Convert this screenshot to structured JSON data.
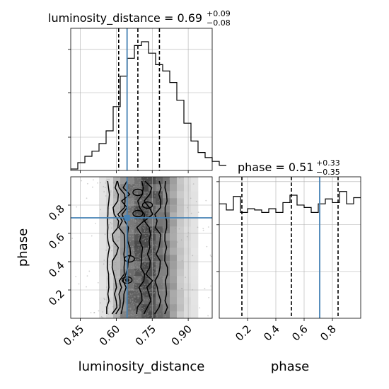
{
  "chart_data": {
    "type": "corner",
    "parameters": [
      "luminosity_distance",
      "phase"
    ],
    "truths": {
      "luminosity_distance": 0.645,
      "phase": 0.71
    },
    "titles": [
      {
        "param": "luminosity_distance",
        "prefix": "luminosity_distance = ",
        "median": "0.69",
        "plus": "+0.09",
        "minus": "−0.08"
      },
      {
        "param": "phase",
        "prefix": "phase = ",
        "median": "0.51",
        "plus": "+0.33",
        "minus": "−0.35"
      }
    ],
    "quantiles": {
      "luminosity_distance": [
        0.61,
        0.69,
        0.78
      ],
      "phase": [
        0.16,
        0.51,
        0.84
      ]
    },
    "xlabels": [
      "luminosity_distance",
      "phase"
    ],
    "ylabel": "phase",
    "ranges": {
      "luminosity_distance": [
        0.41,
        1.0
      ],
      "phase": [
        0.0,
        1.0
      ]
    },
    "ticks": {
      "luminosity_distance": [
        "0.45",
        "0.60",
        "0.75",
        "0.90"
      ],
      "phase": [
        "0.2",
        "0.4",
        "0.6",
        "0.8"
      ]
    },
    "hist_luminosity_distance": {
      "bin_start": 0.41,
      "bin_width": 0.0295,
      "counts": [
        0.0,
        0.05,
        0.1,
        0.14,
        0.2,
        0.3,
        0.49,
        0.73,
        0.87,
        0.97,
        1.0,
        0.91,
        0.82,
        0.77,
        0.68,
        0.54,
        0.36,
        0.22,
        0.13,
        0.09,
        0.06,
        0.03
      ]
    },
    "hist_phase": {
      "bin_start": 0.0,
      "bin_width": 0.05,
      "counts": [
        0.93,
        0.88,
        0.99,
        0.86,
        0.89,
        0.88,
        0.86,
        0.89,
        0.86,
        0.94,
        1.0,
        0.92,
        0.9,
        0.86,
        0.93,
        0.97,
        0.94,
        1.03,
        0.93,
        0.98
      ]
    },
    "density_grid": {
      "x_start": 0.41,
      "x_width": 0.0295,
      "y_start": 0.0,
      "y_width": 0.05,
      "profile": [
        0.0,
        0.01,
        0.02,
        0.03,
        0.06,
        0.12,
        0.34,
        0.58,
        0.76,
        0.9,
        1.0,
        0.92,
        0.8,
        0.66,
        0.46,
        0.24,
        0.1,
        0.05,
        0.03,
        0.02,
        0.01,
        0.0
      ]
    },
    "contours": [
      {
        "name": "outer",
        "x": [
          0.566,
          0.808
        ],
        "wiggle": 0.006
      },
      {
        "name": "mid",
        "x": [
          0.596,
          0.774
        ],
        "wiggle": 0.014
      },
      {
        "name": "inner",
        "x": [
          0.618,
          0.735
        ],
        "wiggle": 0.02
      },
      {
        "name": "core",
        "x": [
          0.64,
          0.705
        ],
        "wiggle": 0.02
      }
    ],
    "grid": true,
    "colors": {
      "truth": "#4682b4",
      "line": "#000000",
      "grid": "#b0b0b0",
      "scatter": "#9a9a9a"
    }
  }
}
